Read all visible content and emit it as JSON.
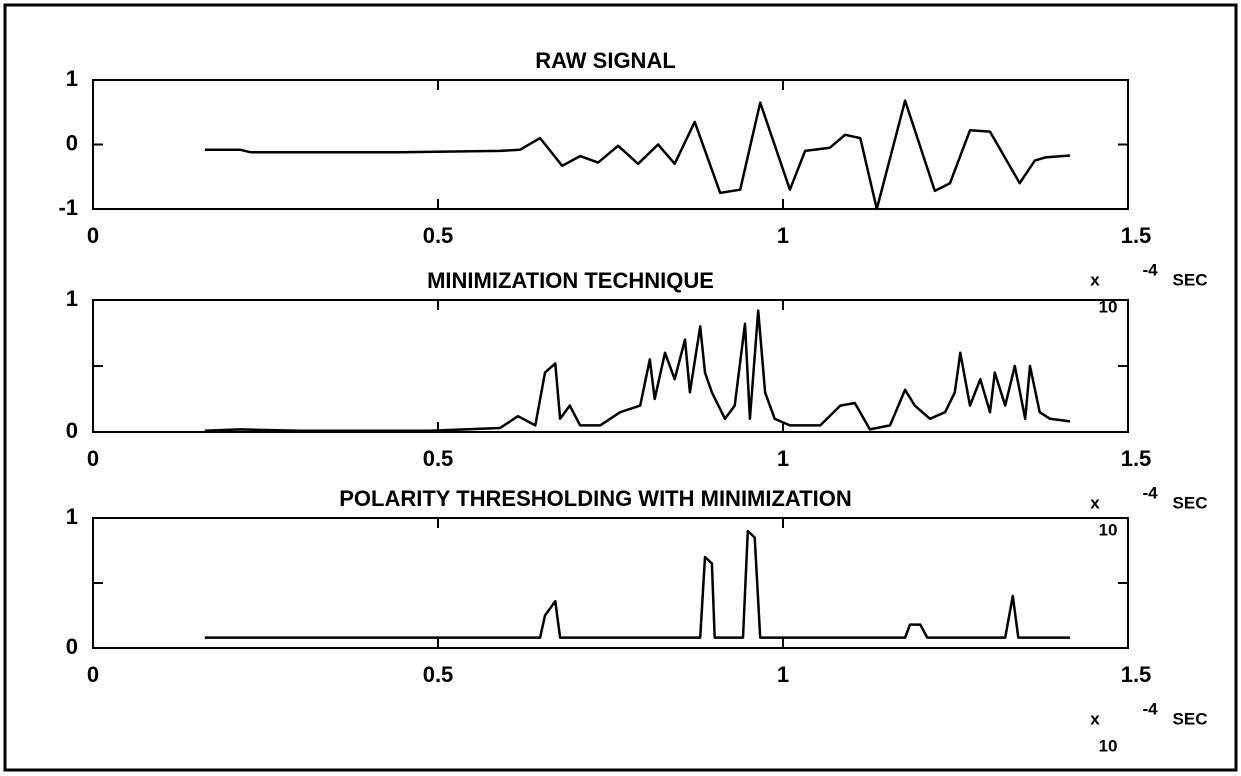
{
  "chart_data": [
    {
      "type": "line",
      "title": "RAW SIGNAL",
      "xlim": [
        0,
        1.5
      ],
      "xticks": [
        0,
        0.5,
        1,
        1.5
      ],
      "ylim": [
        -1,
        1
      ],
      "yticks": [
        -1,
        0,
        1
      ],
      "minor_yticks": [],
      "multiplier": "x",
      "base": "10",
      "exponent": "-4",
      "xlabel": "SEC",
      "color": "#000000",
      "x": [
        0.162,
        0.213,
        0.228,
        0.445,
        0.59,
        0.619,
        0.648,
        0.68,
        0.706,
        0.732,
        0.761,
        0.79,
        0.819,
        0.843,
        0.872,
        0.909,
        0.938,
        0.967,
        1.01,
        1.032,
        1.068,
        1.09,
        1.112,
        1.136,
        1.177,
        1.22,
        1.242,
        1.271,
        1.3,
        1.343,
        1.365,
        1.38,
        1.416
      ],
      "values": [
        -0.08,
        -0.08,
        -0.12,
        -0.12,
        -0.1,
        -0.08,
        0.1,
        -0.33,
        -0.18,
        -0.28,
        -0.02,
        -0.3,
        0,
        -0.3,
        0.35,
        -0.75,
        -0.7,
        0.65,
        -0.7,
        -0.1,
        -0.05,
        0.15,
        0.1,
        -1,
        0.68,
        -0.72,
        -0.6,
        0.22,
        0.2,
        -0.6,
        -0.25,
        -0.2,
        -0.17
      ]
    },
    {
      "type": "line",
      "title": "MINIMIZATION TECHNIQUE",
      "xlim": [
        0,
        1.5
      ],
      "xticks": [
        0,
        0.5,
        1,
        1.5
      ],
      "ylim": [
        0,
        1
      ],
      "yticks": [
        0,
        1
      ],
      "minor_yticks": [
        0.5
      ],
      "multiplier": "x",
      "base": "10",
      "exponent": "-4",
      "xlabel": "SEC",
      "color": "#000000",
      "x": [
        0.162,
        0.213,
        0.3,
        0.488,
        0.59,
        0.616,
        0.641,
        0.655,
        0.67,
        0.677,
        0.691,
        0.706,
        0.735,
        0.764,
        0.793,
        0.807,
        0.814,
        0.829,
        0.843,
        0.858,
        0.865,
        0.88,
        0.887,
        0.897,
        0.916,
        0.93,
        0.945,
        0.952,
        0.964,
        0.974,
        0.988,
        1.01,
        1.054,
        1.083,
        1.104,
        1.126,
        1.155,
        1.177,
        1.191,
        1.213,
        1.235,
        1.249,
        1.257,
        1.271,
        1.286,
        1.3,
        1.307,
        1.322,
        1.336,
        1.351,
        1.358,
        1.372,
        1.387,
        1.416
      ],
      "values": [
        0.01,
        0.02,
        0.01,
        0.01,
        0.03,
        0.12,
        0.05,
        0.45,
        0.52,
        0.1,
        0.2,
        0.05,
        0.05,
        0.15,
        0.2,
        0.55,
        0.25,
        0.6,
        0.4,
        0.7,
        0.3,
        0.8,
        0.45,
        0.3,
        0.1,
        0.2,
        0.82,
        0.1,
        0.92,
        0.3,
        0.1,
        0.05,
        0.05,
        0.2,
        0.22,
        0.02,
        0.05,
        0.32,
        0.2,
        0.1,
        0.15,
        0.3,
        0.6,
        0.2,
        0.4,
        0.15,
        0.45,
        0.2,
        0.5,
        0.1,
        0.5,
        0.15,
        0.1,
        0.08
      ]
    },
    {
      "type": "line",
      "title": "POLARITY THRESHOLDING WITH MINIMIZATION",
      "xlim": [
        0,
        1.5
      ],
      "xticks": [
        0,
        0.5,
        1,
        1.5
      ],
      "ylim": [
        0,
        1
      ],
      "yticks": [
        0,
        1
      ],
      "minor_yticks": [
        0.5
      ],
      "multiplier": "x",
      "base": "10",
      "exponent": "-4",
      "xlabel": "SEC",
      "color": "#000000",
      "x": [
        0.162,
        0.648,
        0.655,
        0.67,
        0.677,
        0.88,
        0.887,
        0.897,
        0.901,
        0.942,
        0.949,
        0.959,
        0.967,
        1.177,
        1.184,
        1.199,
        1.209,
        1.322,
        1.333,
        1.341,
        1.416
      ],
      "values": [
        0.08,
        0.08,
        0.25,
        0.36,
        0.08,
        0.08,
        0.7,
        0.65,
        0.08,
        0.08,
        0.9,
        0.85,
        0.08,
        0.08,
        0.18,
        0.18,
        0.08,
        0.08,
        0.4,
        0.08,
        0.08
      ]
    }
  ]
}
